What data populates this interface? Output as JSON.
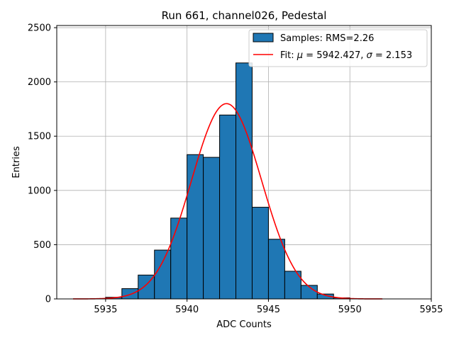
{
  "chart_data": {
    "type": "bar",
    "title": "Run 661, channel026, Pedestal",
    "xlabel": "ADC Counts",
    "ylabel": "Entries",
    "xlim": [
      5932,
      5955
    ],
    "ylim": [
      0,
      2520
    ],
    "xticks": [
      5935,
      5940,
      5945,
      5950,
      5955
    ],
    "yticks": [
      0,
      500,
      1000,
      1500,
      2000,
      2500
    ],
    "grid": true,
    "legend_position": "upper-right",
    "bar_color": "#1f77b4",
    "fit_color": "#ff0000",
    "histogram": {
      "name": "Samples: RMS=2.26",
      "bin_width": 1,
      "bin_starts": [
        5935,
        5936,
        5937,
        5938,
        5939,
        5940,
        5941,
        5942,
        5943,
        5944,
        5945,
        5946,
        5947,
        5948,
        5949
      ],
      "counts": [
        15,
        95,
        220,
        450,
        745,
        1330,
        1305,
        1695,
        2175,
        845,
        550,
        255,
        125,
        45,
        10
      ]
    },
    "fit": {
      "name_prefix": "Fit: ",
      "mu_symbol": "μ",
      "mu_text": " = 5942.427, ",
      "sigma_symbol": "σ",
      "sigma_text": " = 2.153",
      "mu": 5942.427,
      "sigma": 2.153,
      "amplitude": 1800,
      "x_range": [
        5933,
        5952
      ]
    }
  }
}
